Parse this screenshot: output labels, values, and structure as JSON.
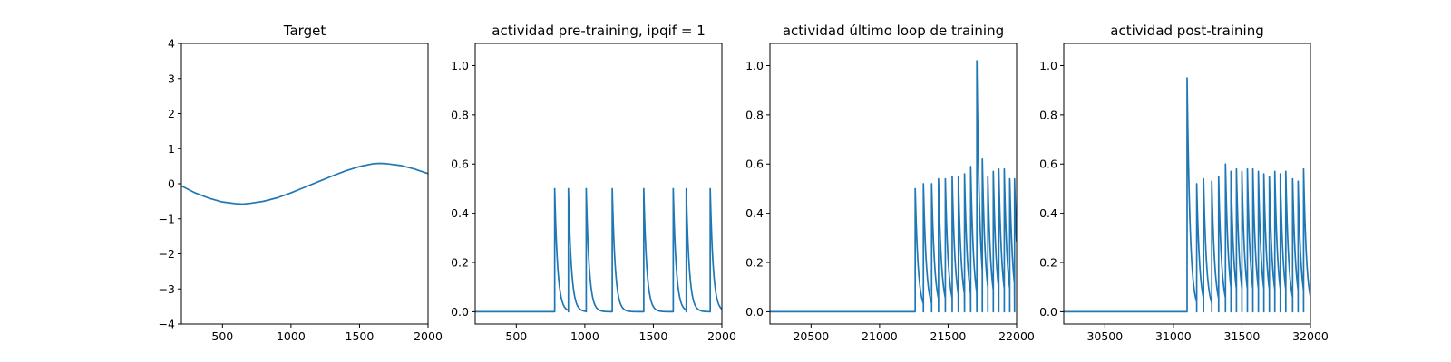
{
  "colors": {
    "series": "#1f77b4"
  },
  "chart_data": [
    {
      "type": "line",
      "title": "Target",
      "xlim": [
        200,
        2000
      ],
      "ylim": [
        -4,
        4
      ],
      "xticks": [
        500,
        1000,
        1500,
        2000
      ],
      "xtick_labels": [
        "500",
        "1000",
        "1500",
        "2000"
      ],
      "yticks": [
        -4,
        -3,
        -2,
        -1,
        0,
        1,
        2,
        3,
        4
      ],
      "ytick_labels": [
        "−4",
        "−3",
        "−2",
        "−1",
        "0",
        "1",
        "2",
        "3",
        "4"
      ],
      "grid": false,
      "series": [
        {
          "x": [
            200,
            300,
            400,
            500,
            600,
            650,
            700,
            800,
            900,
            1000,
            1100,
            1200,
            1300,
            1400,
            1500,
            1600,
            1650,
            1700,
            1800,
            1900,
            2000
          ],
          "y": [
            -0.06,
            -0.26,
            -0.41,
            -0.52,
            -0.57,
            -0.58,
            -0.56,
            -0.5,
            -0.4,
            -0.26,
            -0.1,
            0.06,
            0.22,
            0.37,
            0.49,
            0.57,
            0.58,
            0.57,
            0.52,
            0.42,
            0.29
          ]
        }
      ]
    },
    {
      "type": "line",
      "title": "actividad pre-training, ipqif = 1",
      "xlim": [
        200,
        2000
      ],
      "ylim": [
        -0.05,
        1.09
      ],
      "xticks": [
        500,
        1000,
        1500,
        2000
      ],
      "xtick_labels": [
        "500",
        "1000",
        "1500",
        "2000"
      ],
      "yticks": [
        0,
        0.2,
        0.4,
        0.6,
        0.8,
        1.0
      ],
      "ytick_labels": [
        "0.0",
        "0.2",
        "0.4",
        "0.6",
        "0.8",
        "1.0"
      ],
      "grid": false,
      "spikes": {
        "baseline": 0,
        "onset": 780,
        "decay_tau": 22,
        "times": [
          780,
          880,
          1010,
          1200,
          1430,
          1645,
          1740,
          1915
        ],
        "peaks": [
          0.5,
          0.5,
          0.5,
          0.5,
          0.5,
          0.5,
          0.5,
          0.5
        ]
      }
    },
    {
      "type": "line",
      "title": "actividad último loop de training",
      "xlim": [
        20200,
        22000
      ],
      "ylim": [
        -0.05,
        1.09
      ],
      "xticks": [
        20500,
        21000,
        21500,
        22000
      ],
      "xtick_labels": [
        "20500",
        "21000",
        "21500",
        "22000"
      ],
      "yticks": [
        0,
        0.2,
        0.4,
        0.6,
        0.8,
        1.0
      ],
      "ytick_labels": [
        "0.0",
        "0.2",
        "0.4",
        "0.6",
        "0.8",
        "1.0"
      ],
      "grid": false,
      "spikes": {
        "baseline": 0,
        "onset": 21260,
        "decay_tau": 22,
        "times": [
          21260,
          21320,
          21380,
          21430,
          21480,
          21530,
          21575,
          21620,
          21665,
          21710,
          21750,
          21790,
          21830,
          21870,
          21910,
          21950,
          21985
        ],
        "peaks": [
          0.5,
          0.52,
          0.52,
          0.54,
          0.54,
          0.55,
          0.55,
          0.56,
          0.59,
          1.02,
          0.62,
          0.55,
          0.57,
          0.58,
          0.58,
          0.54,
          0.54
        ]
      }
    },
    {
      "type": "line",
      "title": "actividad post-training",
      "xlim": [
        30200,
        32000
      ],
      "ylim": [
        -0.05,
        1.09
      ],
      "xticks": [
        30500,
        31000,
        31500,
        32000
      ],
      "xtick_labels": [
        "30500",
        "31000",
        "31500",
        "32000"
      ],
      "yticks": [
        0,
        0.2,
        0.4,
        0.6,
        0.8,
        1.0
      ],
      "ytick_labels": [
        "0.0",
        "0.2",
        "0.4",
        "0.6",
        "0.8",
        "1.0"
      ],
      "grid": false,
      "spikes": {
        "baseline": 0,
        "onset": 31100,
        "decay_tau": 22,
        "times": [
          31100,
          31170,
          31220,
          31280,
          31330,
          31380,
          31420,
          31460,
          31500,
          31540,
          31580,
          31620,
          31660,
          31700,
          31740,
          31780,
          31820,
          31870,
          31910,
          31950
        ],
        "peaks": [
          0.95,
          0.52,
          0.54,
          0.53,
          0.55,
          0.6,
          0.57,
          0.58,
          0.57,
          0.58,
          0.58,
          0.57,
          0.56,
          0.55,
          0.57,
          0.56,
          0.57,
          0.54,
          0.53,
          0.58
        ]
      }
    }
  ]
}
